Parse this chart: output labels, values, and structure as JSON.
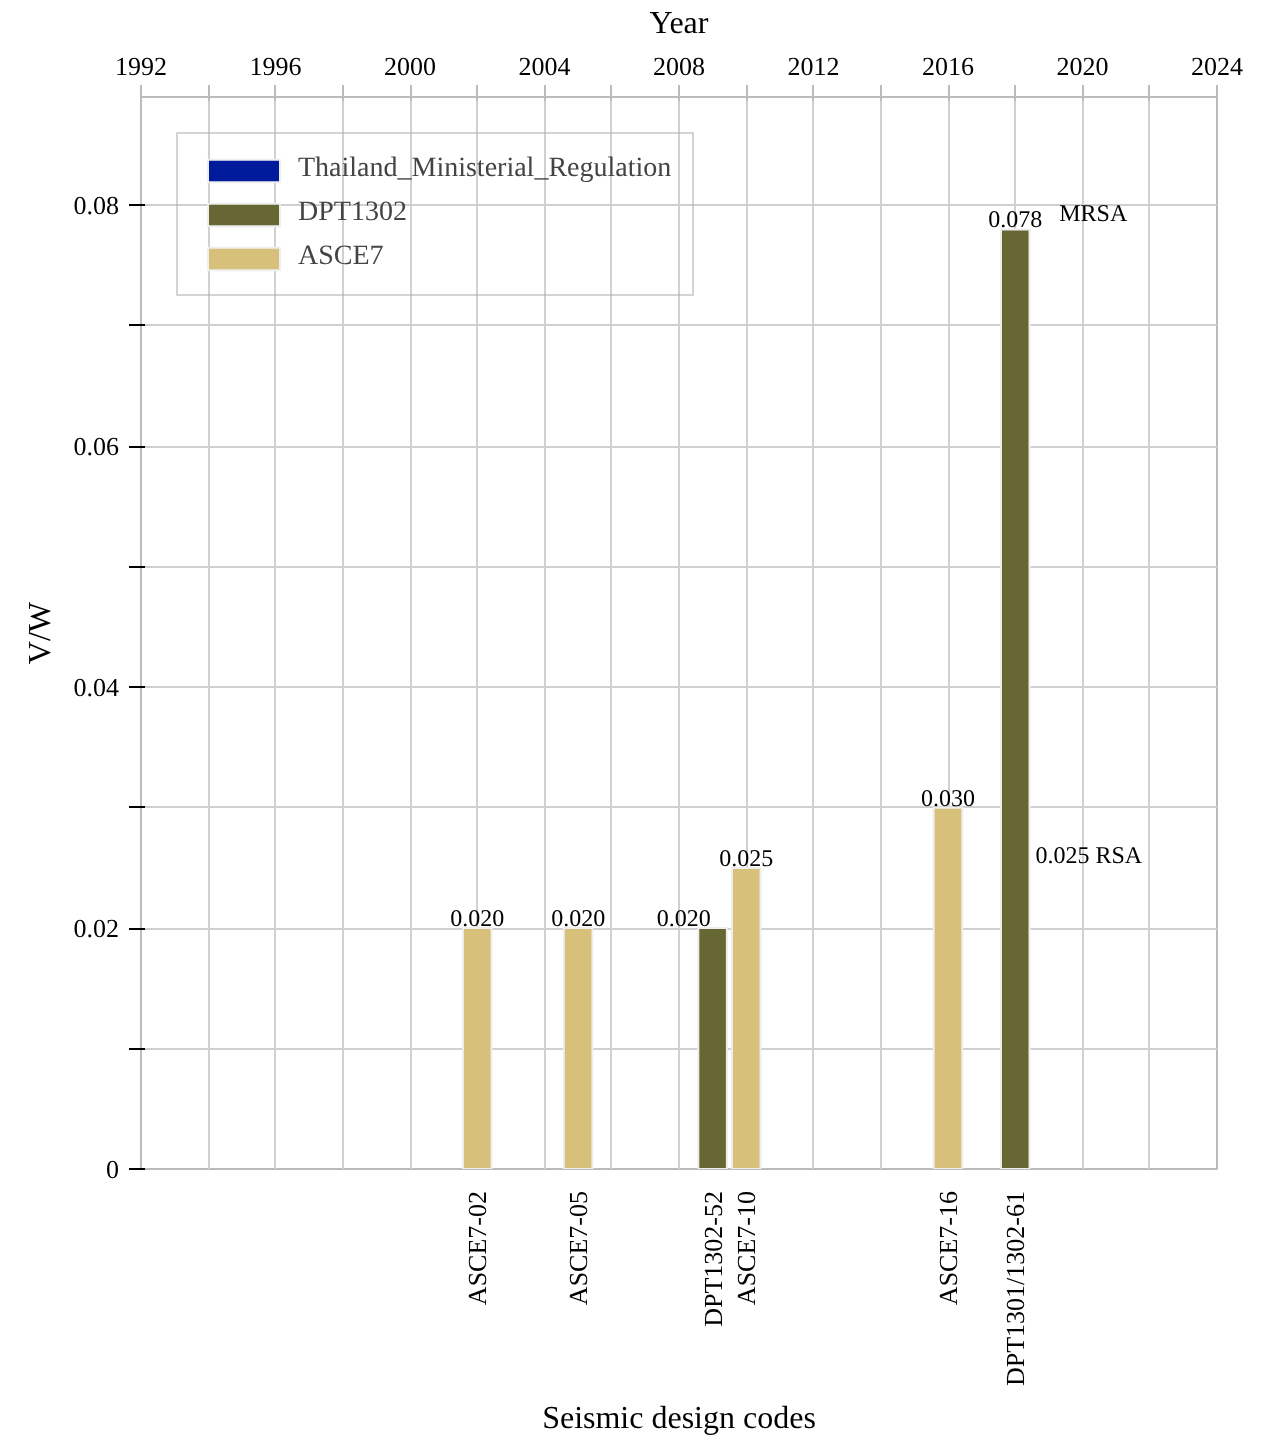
{
  "chart_data": {
    "type": "bar",
    "xlabel": "Year",
    "ylabel": "V/W",
    "xlim": [
      1992,
      2024
    ],
    "xticks": [
      1992,
      {
        "value": 1994,
        "label": null
      },
      1996,
      {
        "value": 1998,
        "label": null
      },
      2000,
      {
        "value": 2002,
        "label": null
      },
      2004,
      {
        "value": 2006,
        "label": null
      },
      2008,
      {
        "value": 2010,
        "label": null
      },
      2012,
      {
        "value": 2014,
        "label": null
      },
      2016,
      {
        "value": 2018,
        "label": null
      },
      2020,
      {
        "value": 2022,
        "label": null
      },
      2024
    ],
    "ylim": [
      0,
      0.089
    ],
    "yticks": [
      {
        "value": 0,
        "label": "0"
      },
      {
        "value": 0.01,
        "label": null
      },
      {
        "value": 0.02,
        "label": "0.02"
      },
      {
        "value": 0.03,
        "label": null
      },
      {
        "value": 0.04,
        "label": "0.04"
      },
      {
        "value": 0.05,
        "label": null
      },
      {
        "value": 0.06,
        "label": "0.06"
      },
      {
        "value": 0.07,
        "label": null
      },
      {
        "value": 0.08,
        "label": "0.08"
      }
    ],
    "series": [
      {
        "name": "Thailand_Ministerial_Regulation",
        "color": "#001a9c"
      },
      {
        "name": "DPT1302",
        "color": "#676733",
        "x": [
          2009,
          2018
        ],
        "values": [
          0.02,
          0.078
        ],
        "value_labels": [
          "0.020",
          "0.078"
        ]
      },
      {
        "name": "ASCE7",
        "color": "#d6c07a",
        "x": [
          2002,
          2005,
          2010,
          2016
        ],
        "values": [
          0.02,
          0.02,
          0.025,
          0.03
        ],
        "value_labels": [
          "0.020",
          "0.020",
          "0.025",
          "0.030"
        ]
      }
    ],
    "annotations": [
      {
        "text": "MRSA",
        "x": 2018,
        "y": 0.078
      },
      "0.025  RSA",
      "Seismic design codes",
      {
        "text": "ASCE7-02",
        "x": 2002,
        "y": 0
      },
      {
        "text": "ASCE7-05",
        "x": 2005,
        "y": 0
      },
      {
        "text": "DPT1302-52",
        "x": 2009,
        "y": 0
      },
      {
        "text": "ASCE7-10",
        "x": 2010,
        "y": 0
      },
      {
        "text": "ASCE7-16",
        "x": 2016,
        "y": 0
      },
      {
        "text": "DPT1301/1302-61",
        "x": 2018,
        "y": 0
      }
    ],
    "grid": true,
    "legend": "top left"
  }
}
